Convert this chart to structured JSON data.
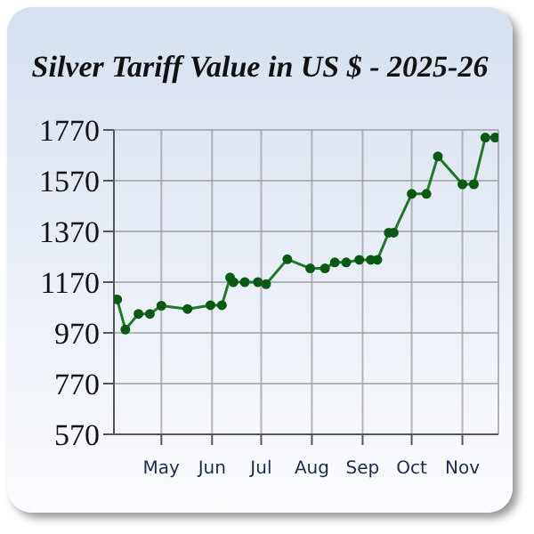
{
  "chart_data": {
    "type": "line",
    "title": "Silver Tariff Value in US $ - 2025-26",
    "x": [
      "2025-04-04",
      "2025-04-09",
      "2025-04-17",
      "2025-04-24",
      "2025-05-01",
      "2025-05-17",
      "2025-05-31",
      "2025-06-07",
      "2025-06-12",
      "2025-06-14",
      "2025-06-21",
      "2025-06-29",
      "2025-07-04",
      "2025-07-17",
      "2025-07-31",
      "2025-08-09",
      "2025-08-15",
      "2025-08-22",
      "2025-08-30",
      "2025-09-06",
      "2025-09-10",
      "2025-09-17",
      "2025-09-20",
      "2025-10-01",
      "2025-10-10",
      "2025-10-17",
      "2025-11-01",
      "2025-11-08",
      "2025-11-15",
      "2025-11-21"
    ],
    "series": [
      {
        "color": "#1e7a2a",
        "values": [
          1102,
          983,
          1045,
          1045,
          1077,
          1064,
          1079,
          1079,
          1188,
          1170,
          1170,
          1170,
          1162,
          1260,
          1224,
          1224,
          1248,
          1248,
          1258,
          1258,
          1258,
          1365,
          1365,
          1518,
          1518,
          1666,
          1556,
          1556,
          1740,
          1740
        ]
      }
    ],
    "xlim": [
      "2025-04-02",
      "2025-11-23"
    ],
    "xticks": [
      {
        "value": "2025-05-01",
        "label": "May"
      },
      {
        "value": "2025-06-01",
        "label": "Jun"
      },
      {
        "value": "2025-07-01",
        "label": "Jul"
      },
      {
        "value": "2025-08-01",
        "label": "Aug"
      },
      {
        "value": "2025-09-01",
        "label": "Sep"
      },
      {
        "value": "2025-10-01",
        "label": "Oct"
      },
      {
        "value": "2025-11-01",
        "label": "Nov"
      }
    ],
    "ylim": [
      570,
      1770
    ],
    "yticks": [
      570,
      770,
      970,
      1170,
      1370,
      1570,
      1770
    ],
    "grid": true,
    "legend": false,
    "marker": "circle",
    "line_style": "solid"
  }
}
